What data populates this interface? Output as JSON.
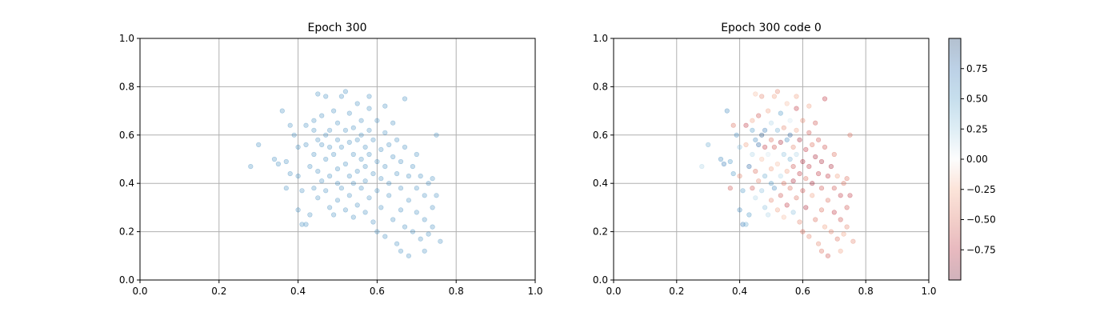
{
  "chart_data": [
    {
      "type": "scatter",
      "title": "Epoch 300",
      "xlim": [
        0,
        1
      ],
      "ylim": [
        0,
        1
      ],
      "xticks": [
        "0.0",
        "0.2",
        "0.4",
        "0.6",
        "0.8",
        "1.0"
      ],
      "yticks": [
        "0.0",
        "0.2",
        "0.4",
        "0.6",
        "0.8",
        "1.0"
      ],
      "grid": true,
      "point_color": "#1f77b4",
      "point_alpha": 0.25,
      "points": [
        [
          0.28,
          0.47
        ],
        [
          0.3,
          0.56
        ],
        [
          0.34,
          0.5
        ],
        [
          0.35,
          0.48
        ],
        [
          0.36,
          0.7
        ],
        [
          0.37,
          0.38
        ],
        [
          0.37,
          0.49
        ],
        [
          0.38,
          0.44
        ],
        [
          0.38,
          0.64
        ],
        [
          0.39,
          0.6
        ],
        [
          0.4,
          0.55
        ],
        [
          0.4,
          0.43
        ],
        [
          0.4,
          0.29
        ],
        [
          0.41,
          0.23
        ],
        [
          0.41,
          0.37
        ],
        [
          0.42,
          0.64
        ],
        [
          0.42,
          0.56
        ],
        [
          0.42,
          0.23
        ],
        [
          0.43,
          0.47
        ],
        [
          0.43,
          0.27
        ],
        [
          0.44,
          0.62
        ],
        [
          0.44,
          0.52
        ],
        [
          0.44,
          0.38
        ],
        [
          0.44,
          0.66
        ],
        [
          0.45,
          0.77
        ],
        [
          0.45,
          0.58
        ],
        [
          0.45,
          0.45
        ],
        [
          0.45,
          0.34
        ],
        [
          0.46,
          0.41
        ],
        [
          0.46,
          0.56
        ],
        [
          0.46,
          0.68
        ],
        [
          0.47,
          0.76
        ],
        [
          0.47,
          0.6
        ],
        [
          0.47,
          0.5
        ],
        [
          0.47,
          0.37
        ],
        [
          0.48,
          0.55
        ],
        [
          0.48,
          0.43
        ],
        [
          0.48,
          0.62
        ],
        [
          0.48,
          0.3
        ],
        [
          0.49,
          0.7
        ],
        [
          0.49,
          0.27
        ],
        [
          0.49,
          0.52
        ],
        [
          0.5,
          0.58
        ],
        [
          0.5,
          0.46
        ],
        [
          0.5,
          0.4
        ],
        [
          0.5,
          0.65
        ],
        [
          0.5,
          0.33
        ],
        [
          0.51,
          0.76
        ],
        [
          0.51,
          0.38
        ],
        [
          0.51,
          0.55
        ],
        [
          0.52,
          0.62
        ],
        [
          0.52,
          0.48
        ],
        [
          0.52,
          0.29
        ],
        [
          0.53,
          0.43
        ],
        [
          0.53,
          0.57
        ],
        [
          0.53,
          0.69
        ],
        [
          0.53,
          0.35
        ],
        [
          0.54,
          0.4
        ],
        [
          0.54,
          0.52
        ],
        [
          0.54,
          0.63
        ],
        [
          0.54,
          0.26
        ],
        [
          0.55,
          0.58
        ],
        [
          0.55,
          0.45
        ],
        [
          0.55,
          0.73
        ],
        [
          0.55,
          0.31
        ],
        [
          0.56,
          0.5
        ],
        [
          0.56,
          0.38
        ],
        [
          0.56,
          0.66
        ],
        [
          0.56,
          0.6
        ],
        [
          0.57,
          0.41
        ],
        [
          0.57,
          0.55
        ],
        [
          0.57,
          0.28
        ],
        [
          0.57,
          0.47
        ],
        [
          0.58,
          0.62
        ],
        [
          0.58,
          0.34
        ],
        [
          0.58,
          0.71
        ],
        [
          0.58,
          0.52
        ],
        [
          0.59,
          0.44
        ],
        [
          0.59,
          0.58
        ],
        [
          0.59,
          0.24
        ],
        [
          0.6,
          0.37
        ],
        [
          0.6,
          0.66
        ],
        [
          0.6,
          0.49
        ],
        [
          0.6,
          0.2
        ],
        [
          0.61,
          0.54
        ],
        [
          0.61,
          0.42
        ],
        [
          0.61,
          0.3
        ],
        [
          0.62,
          0.61
        ],
        [
          0.62,
          0.47
        ],
        [
          0.62,
          0.72
        ],
        [
          0.62,
          0.18
        ],
        [
          0.63,
          0.4
        ],
        [
          0.63,
          0.56
        ],
        [
          0.63,
          0.35
        ],
        [
          0.64,
          0.51
        ],
        [
          0.64,
          0.65
        ],
        [
          0.64,
          0.25
        ],
        [
          0.65,
          0.44
        ],
        [
          0.65,
          0.58
        ],
        [
          0.65,
          0.15
        ],
        [
          0.66,
          0.38
        ],
        [
          0.66,
          0.49
        ],
        [
          0.66,
          0.29
        ],
        [
          0.67,
          0.75
        ],
        [
          0.67,
          0.55
        ],
        [
          0.67,
          0.22
        ],
        [
          0.68,
          0.43
        ],
        [
          0.68,
          0.33
        ],
        [
          0.68,
          0.1
        ],
        [
          0.69,
          0.47
        ],
        [
          0.69,
          0.2
        ],
        [
          0.7,
          0.38
        ],
        [
          0.7,
          0.28
        ],
        [
          0.7,
          0.52
        ],
        [
          0.71,
          0.43
        ],
        [
          0.71,
          0.17
        ],
        [
          0.72,
          0.35
        ],
        [
          0.72,
          0.25
        ],
        [
          0.73,
          0.4
        ],
        [
          0.73,
          0.19
        ],
        [
          0.74,
          0.3
        ],
        [
          0.74,
          0.22
        ],
        [
          0.75,
          0.35
        ],
        [
          0.75,
          0.6
        ],
        [
          0.76,
          0.16
        ],
        [
          0.74,
          0.42
        ],
        [
          0.72,
          0.12
        ],
        [
          0.66,
          0.12
        ],
        [
          0.58,
          0.76
        ],
        [
          0.52,
          0.78
        ]
      ]
    },
    {
      "type": "scatter",
      "title": "Epoch 300 code 0",
      "xlim": [
        0,
        1
      ],
      "ylim": [
        0,
        1
      ],
      "xticks": [
        "0.0",
        "0.2",
        "0.4",
        "0.6",
        "0.8",
        "1.0"
      ],
      "yticks": [
        "0.0",
        "0.2",
        "0.4",
        "0.6",
        "0.8",
        "1.0"
      ],
      "grid": true,
      "colormap": "RdBu",
      "point_alpha": 0.3,
      "colorbar": {
        "range": [
          -1,
          1
        ],
        "ticks": [
          "0.75",
          "0.50",
          "0.25",
          "0.00",
          "−0.25",
          "−0.50",
          "−0.75"
        ],
        "tick_values": [
          0.75,
          0.5,
          0.25,
          0,
          -0.25,
          -0.5,
          -0.75
        ],
        "low_color": "#67001f",
        "mid_color": "#f7f7f7",
        "high_color": "#053061"
      },
      "points": [
        [
          0.28,
          0.47,
          0.2
        ],
        [
          0.3,
          0.56,
          0.4
        ],
        [
          0.34,
          0.5,
          0.6
        ],
        [
          0.35,
          0.48,
          0.7
        ],
        [
          0.36,
          0.7,
          0.6
        ],
        [
          0.37,
          0.38,
          -0.6
        ],
        [
          0.37,
          0.49,
          0.5
        ],
        [
          0.38,
          0.44,
          0.5
        ],
        [
          0.38,
          0.64,
          -0.5
        ],
        [
          0.39,
          0.6,
          0.6
        ],
        [
          0.4,
          0.55,
          0.3
        ],
        [
          0.4,
          0.43,
          -0.4
        ],
        [
          0.4,
          0.29,
          0.6
        ],
        [
          0.41,
          0.23,
          0.7
        ],
        [
          0.41,
          0.37,
          0.5
        ],
        [
          0.42,
          0.64,
          -0.7
        ],
        [
          0.42,
          0.56,
          -0.3
        ],
        [
          0.42,
          0.23,
          0.4
        ],
        [
          0.43,
          0.47,
          0.8
        ],
        [
          0.43,
          0.27,
          0.5
        ],
        [
          0.44,
          0.62,
          0.5
        ],
        [
          0.44,
          0.52,
          0.2
        ],
        [
          0.44,
          0.38,
          -0.6
        ],
        [
          0.44,
          0.66,
          -0.3
        ],
        [
          0.45,
          0.77,
          -0.2
        ],
        [
          0.45,
          0.58,
          0.6
        ],
        [
          0.45,
          0.45,
          -0.5
        ],
        [
          0.45,
          0.34,
          0.2
        ],
        [
          0.46,
          0.41,
          -0.4
        ],
        [
          0.46,
          0.56,
          0.8
        ],
        [
          0.46,
          0.68,
          -0.6
        ],
        [
          0.47,
          0.76,
          -0.4
        ],
        [
          0.47,
          0.6,
          0.9
        ],
        [
          0.47,
          0.5,
          -0.2
        ],
        [
          0.47,
          0.37,
          0.3
        ],
        [
          0.48,
          0.55,
          -0.7
        ],
        [
          0.48,
          0.43,
          0.4
        ],
        [
          0.48,
          0.62,
          0.7
        ],
        [
          0.48,
          0.3,
          0.3
        ],
        [
          0.49,
          0.7,
          -0.3
        ],
        [
          0.49,
          0.27,
          0.2
        ],
        [
          0.49,
          0.52,
          0.1
        ],
        [
          0.5,
          0.58,
          -0.5
        ],
        [
          0.5,
          0.46,
          -0.3
        ],
        [
          0.5,
          0.4,
          0.5
        ],
        [
          0.5,
          0.65,
          0.2
        ],
        [
          0.5,
          0.33,
          -0.4
        ],
        [
          0.51,
          0.76,
          -0.3
        ],
        [
          0.51,
          0.38,
          0.6
        ],
        [
          0.51,
          0.55,
          -0.6
        ],
        [
          0.52,
          0.62,
          0.4
        ],
        [
          0.52,
          0.48,
          -0.2
        ],
        [
          0.52,
          0.29,
          -0.3
        ],
        [
          0.53,
          0.43,
          0.2
        ],
        [
          0.53,
          0.57,
          -0.8
        ],
        [
          0.53,
          0.69,
          0.5
        ],
        [
          0.53,
          0.35,
          -0.6
        ],
        [
          0.54,
          0.4,
          -0.5
        ],
        [
          0.54,
          0.52,
          0.3
        ],
        [
          0.54,
          0.63,
          -0.4
        ],
        [
          0.54,
          0.26,
          -0.2
        ],
        [
          0.55,
          0.58,
          0.6
        ],
        [
          0.55,
          0.45,
          -0.3
        ],
        [
          0.55,
          0.73,
          -0.2
        ],
        [
          0.55,
          0.31,
          -0.7
        ],
        [
          0.56,
          0.5,
          0.4
        ],
        [
          0.56,
          0.38,
          -0.5
        ],
        [
          0.56,
          0.66,
          0.1
        ],
        [
          0.56,
          0.6,
          0.8
        ],
        [
          0.57,
          0.41,
          -0.8
        ],
        [
          0.57,
          0.55,
          -0.4
        ],
        [
          0.57,
          0.28,
          0.3
        ],
        [
          0.57,
          0.47,
          -0.6
        ],
        [
          0.58,
          0.62,
          -0.3
        ],
        [
          0.58,
          0.34,
          -0.5
        ],
        [
          0.58,
          0.71,
          -0.7
        ],
        [
          0.58,
          0.52,
          0.2
        ],
        [
          0.59,
          0.44,
          -0.7
        ],
        [
          0.59,
          0.58,
          -0.8
        ],
        [
          0.59,
          0.24,
          -0.4
        ],
        [
          0.6,
          0.37,
          -0.6
        ],
        [
          0.6,
          0.66,
          -0.4
        ],
        [
          0.6,
          0.49,
          -0.8
        ],
        [
          0.6,
          0.2,
          -0.5
        ],
        [
          0.61,
          0.54,
          -0.7
        ],
        [
          0.61,
          0.42,
          -0.5
        ],
        [
          0.61,
          0.3,
          -0.8
        ],
        [
          0.62,
          0.61,
          -0.6
        ],
        [
          0.62,
          0.47,
          -0.7
        ],
        [
          0.62,
          0.72,
          -0.3
        ],
        [
          0.62,
          0.18,
          -0.4
        ],
        [
          0.63,
          0.4,
          -0.8
        ],
        [
          0.63,
          0.56,
          -0.5
        ],
        [
          0.63,
          0.35,
          -0.3
        ],
        [
          0.64,
          0.51,
          -0.8
        ],
        [
          0.64,
          0.65,
          -0.6
        ],
        [
          0.64,
          0.25,
          -0.5
        ],
        [
          0.65,
          0.44,
          -0.7
        ],
        [
          0.65,
          0.58,
          -0.6
        ],
        [
          0.65,
          0.15,
          -0.4
        ],
        [
          0.66,
          0.38,
          -0.6
        ],
        [
          0.66,
          0.49,
          -0.8
        ],
        [
          0.66,
          0.29,
          -0.5
        ],
        [
          0.67,
          0.75,
          -0.7
        ],
        [
          0.67,
          0.55,
          -0.6
        ],
        [
          0.67,
          0.22,
          -0.3
        ],
        [
          0.68,
          0.43,
          -0.7
        ],
        [
          0.68,
          0.33,
          -0.5
        ],
        [
          0.68,
          0.1,
          -0.6
        ],
        [
          0.69,
          0.47,
          -0.8
        ],
        [
          0.69,
          0.2,
          -0.4
        ],
        [
          0.7,
          0.38,
          -0.6
        ],
        [
          0.7,
          0.28,
          -0.7
        ],
        [
          0.7,
          0.52,
          -0.5
        ],
        [
          0.71,
          0.43,
          -0.3
        ],
        [
          0.71,
          0.17,
          -0.5
        ],
        [
          0.72,
          0.35,
          -0.7
        ],
        [
          0.72,
          0.25,
          -0.6
        ],
        [
          0.73,
          0.4,
          -0.5
        ],
        [
          0.73,
          0.19,
          -0.3
        ],
        [
          0.74,
          0.3,
          -0.6
        ],
        [
          0.74,
          0.22,
          -0.4
        ],
        [
          0.75,
          0.35,
          -0.7
        ],
        [
          0.75,
          0.6,
          -0.5
        ],
        [
          0.76,
          0.16,
          -0.4
        ],
        [
          0.74,
          0.42,
          -0.5
        ],
        [
          0.72,
          0.12,
          -0.3
        ],
        [
          0.66,
          0.12,
          -0.5
        ],
        [
          0.58,
          0.76,
          -0.3
        ],
        [
          0.52,
          0.78,
          -0.4
        ]
      ]
    }
  ]
}
